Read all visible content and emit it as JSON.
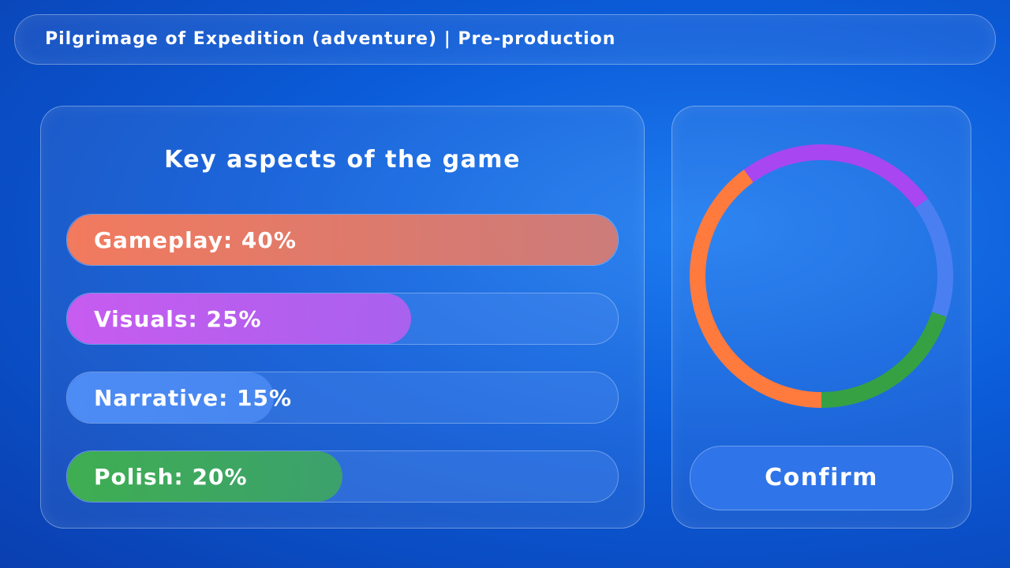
{
  "header": {
    "title": "Pilgrimage of Expedition (adventure)  |  Pre-production"
  },
  "panel": {
    "title": "Key aspects of the game",
    "aspects": [
      {
        "label": "Gameplay: 40%",
        "value": 40,
        "color": "#f27a5e",
        "ring_color": "#ff7a3d"
      },
      {
        "label": "Visuals: 25%",
        "value": 25,
        "color": "#c75cf0",
        "ring_color": "#a846f2"
      },
      {
        "label": "Narrative: 15%",
        "value": 15,
        "color": "#4d8cf5",
        "ring_color": "#4a7ff2"
      },
      {
        "label": "Polish: 20%",
        "value": 20,
        "color": "#3fae52",
        "ring_color": "#36a143"
      }
    ]
  },
  "button": {
    "label": "Confirm"
  }
}
